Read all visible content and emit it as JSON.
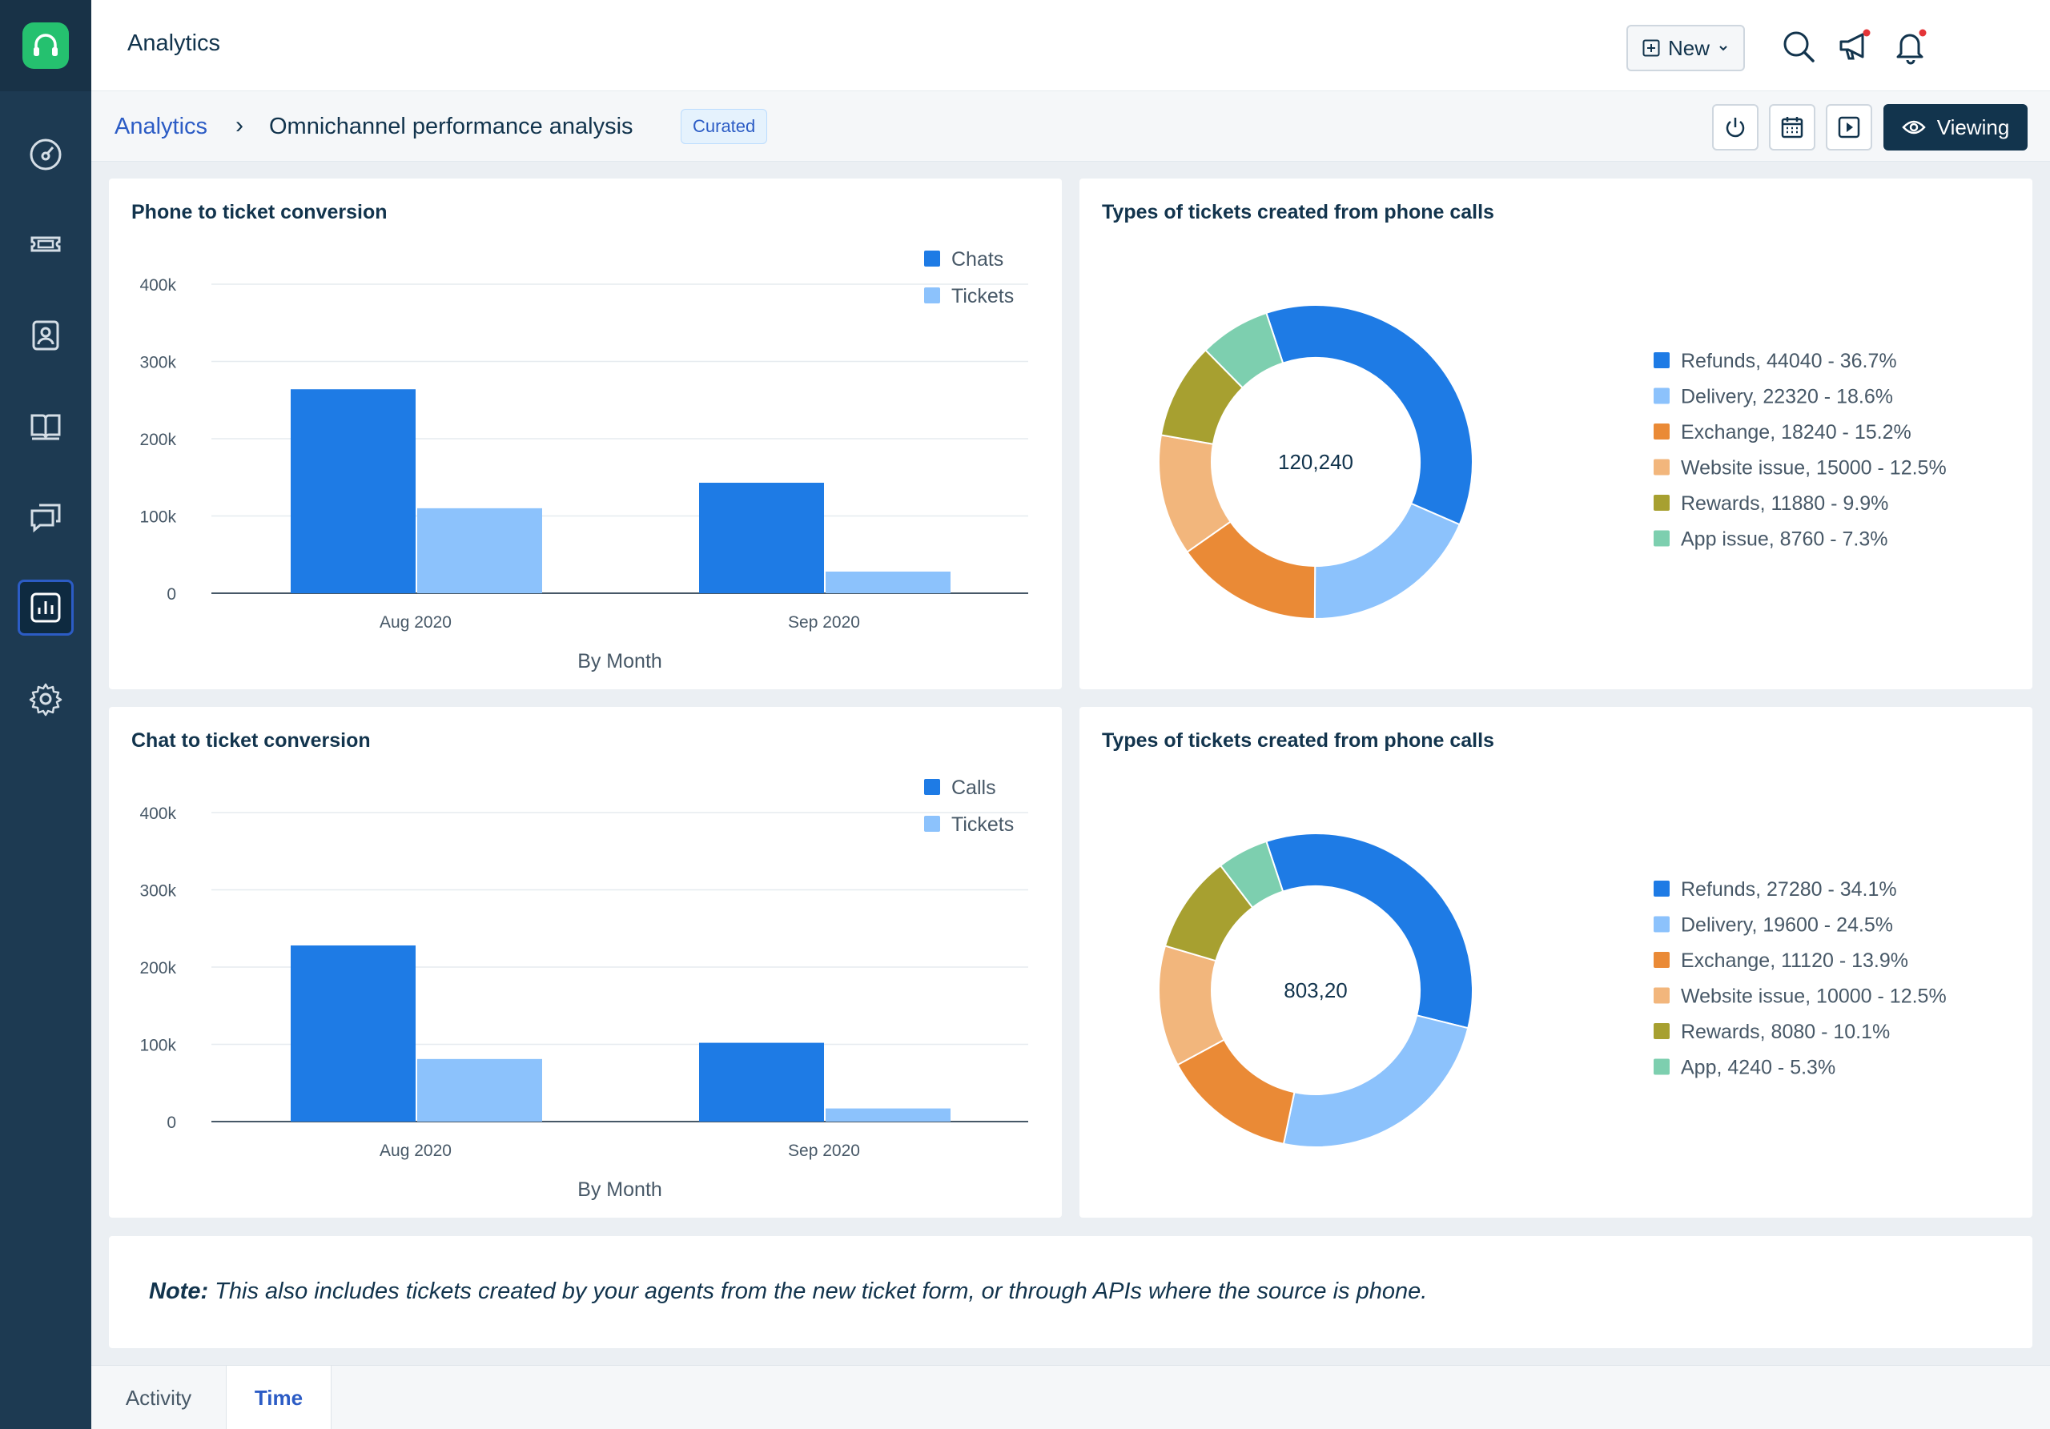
{
  "header": {
    "title": "Analytics",
    "new_label": "New"
  },
  "subheader": {
    "crumb_root": "Analytics",
    "crumb_sep": "›",
    "crumb_current": "Omnichannel performance analysis",
    "badge": "Curated",
    "viewing_label": "Viewing"
  },
  "note": {
    "label": "Note:",
    "text": " This also includes tickets created by your agents from the new ticket form, or through APIs where the source is phone."
  },
  "tabs": [
    {
      "label": "Activity",
      "active": false
    },
    {
      "label": "Time",
      "active": true
    }
  ],
  "icons": {
    "logo": "headset-icon",
    "sidebar": [
      "dashboard-icon",
      "ticket-icon",
      "contact-icon",
      "book-icon",
      "chat-icon",
      "analytics-icon",
      "gear-icon"
    ],
    "header": [
      "search-icon",
      "megaphone-icon",
      "bell-icon"
    ],
    "tools": [
      "power-icon",
      "calendar-icon",
      "play-icon",
      "eye-icon"
    ]
  },
  "colors": {
    "accent": "#2c5cc5",
    "sidebar": "#1d3a52",
    "bar_primary": "#1e7be5",
    "bar_secondary": "#8cc2fc",
    "notification_dot": "#e43538"
  },
  "chart_data": [
    {
      "type": "bar",
      "title": "Phone to ticket conversion",
      "categories": [
        "Aug 2020",
        "Sep 2020"
      ],
      "series": [
        {
          "name": "Chats",
          "values": [
            264000,
            143000
          ],
          "color": "#1e7be5"
        },
        {
          "name": "Tickets",
          "values": [
            110000,
            28000
          ],
          "color": "#8cc2fc"
        }
      ],
      "xlabel": "By Month",
      "ylabel": "",
      "yticks": [
        "0",
        "100k",
        "200k",
        "300k",
        "400k"
      ],
      "ylim": [
        0,
        400000
      ],
      "legend": "top-right",
      "grid": true
    },
    {
      "type": "pie",
      "title": "Types of tickets created from phone calls",
      "center_label": "120,240",
      "slices": [
        {
          "label": "Refunds, 44040 -  36.7%",
          "value": 44040,
          "color": "#1e7be5"
        },
        {
          "label": "Delivery, 22320 -  18.6%",
          "value": 22320,
          "color": "#8cc2fc"
        },
        {
          "label": "Exchange, 18240 -  15.2%",
          "value": 18240,
          "color": "#ea8a36"
        },
        {
          "label": "Website issue, 15000 -  12.5%",
          "value": 15000,
          "color": "#f2b67c"
        },
        {
          "label": "Rewards, 11880 -  9.9%",
          "value": 11880,
          "color": "#a7a030"
        },
        {
          "label": "App issue, 8760 -  7.3%",
          "value": 8760,
          "color": "#7dcfaf"
        }
      ],
      "legend": "right"
    },
    {
      "type": "bar",
      "title": "Chat to ticket conversion",
      "categories": [
        "Aug 2020",
        "Sep 2020"
      ],
      "series": [
        {
          "name": "Calls",
          "values": [
            228000,
            102000
          ],
          "color": "#1e7be5"
        },
        {
          "name": "Tickets",
          "values": [
            81000,
            17000
          ],
          "color": "#8cc2fc"
        }
      ],
      "xlabel": "By Month",
      "ylabel": "",
      "yticks": [
        "0",
        "100k",
        "200k",
        "300k",
        "400k"
      ],
      "ylim": [
        0,
        400000
      ],
      "legend": "top-right",
      "grid": true
    },
    {
      "type": "pie",
      "title": "Types of tickets created from phone calls",
      "center_label": "803,20",
      "slices": [
        {
          "label": "Refunds, 27280 -  34.1%",
          "value": 27280,
          "color": "#1e7be5"
        },
        {
          "label": "Delivery, 19600 -  24.5%",
          "value": 19600,
          "color": "#8cc2fc"
        },
        {
          "label": "Exchange, 11120 -  13.9%",
          "value": 11120,
          "color": "#ea8a36"
        },
        {
          "label": "Website issue, 10000 -  12.5%",
          "value": 10000,
          "color": "#f2b67c"
        },
        {
          "label": "Rewards, 8080 -  10.1%",
          "value": 8080,
          "color": "#a7a030"
        },
        {
          "label": "App, 4240 -  5.3%",
          "value": 4240,
          "color": "#7dcfaf"
        }
      ],
      "legend": "right"
    }
  ]
}
